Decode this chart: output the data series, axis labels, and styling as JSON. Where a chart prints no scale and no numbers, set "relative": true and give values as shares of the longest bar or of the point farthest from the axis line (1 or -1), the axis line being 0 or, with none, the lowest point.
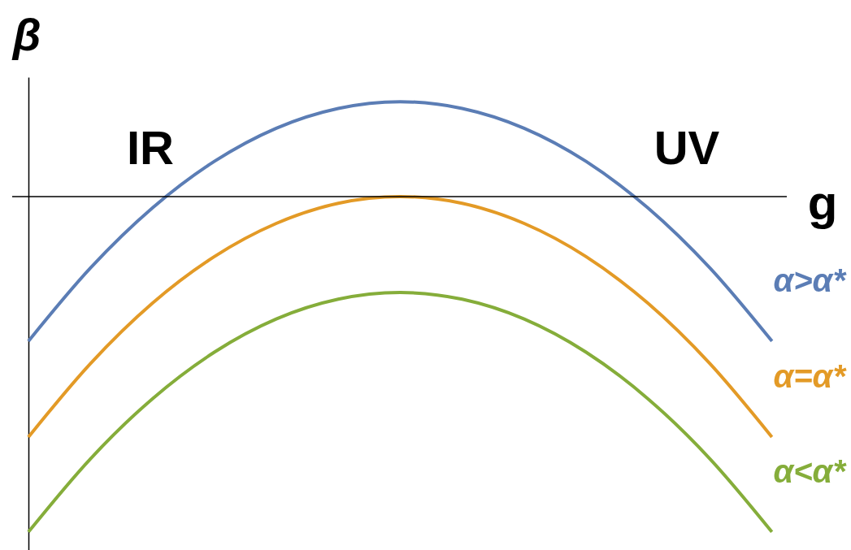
{
  "chart_data": {
    "type": "line",
    "relative": true,
    "xlabel": "g",
    "ylabel": "β",
    "categories": [
      null,
      null,
      null,
      null,
      null,
      null,
      null,
      null,
      null,
      null,
      null,
      null,
      null
    ],
    "series": [
      {
        "name": "α>α*",
        "color": "#5b7db5",
        "values": [
          -0.431,
          -0.213,
          -0.034,
          0.105,
          0.204,
          0.263,
          0.283,
          0.263,
          0.204,
          0.105,
          -0.034,
          -0.213,
          -0.431
        ]
      },
      {
        "name": "α=α*",
        "color": "#e39a26",
        "values": [
          -0.717,
          -0.498,
          -0.318,
          -0.179,
          -0.08,
          -0.02,
          0,
          -0.02,
          -0.08,
          -0.179,
          -0.318,
          -0.498,
          -0.717
        ]
      },
      {
        "name": "α<α*",
        "color": "#85ad3a",
        "values": [
          -1,
          -0.782,
          -0.603,
          -0.464,
          -0.365,
          -0.306,
          -0.286,
          -0.306,
          -0.365,
          -0.464,
          -0.603,
          -0.782,
          -1
        ]
      }
    ],
    "annotations": [
      "IR",
      "UV"
    ],
    "legend": false,
    "grid": false
  }
}
